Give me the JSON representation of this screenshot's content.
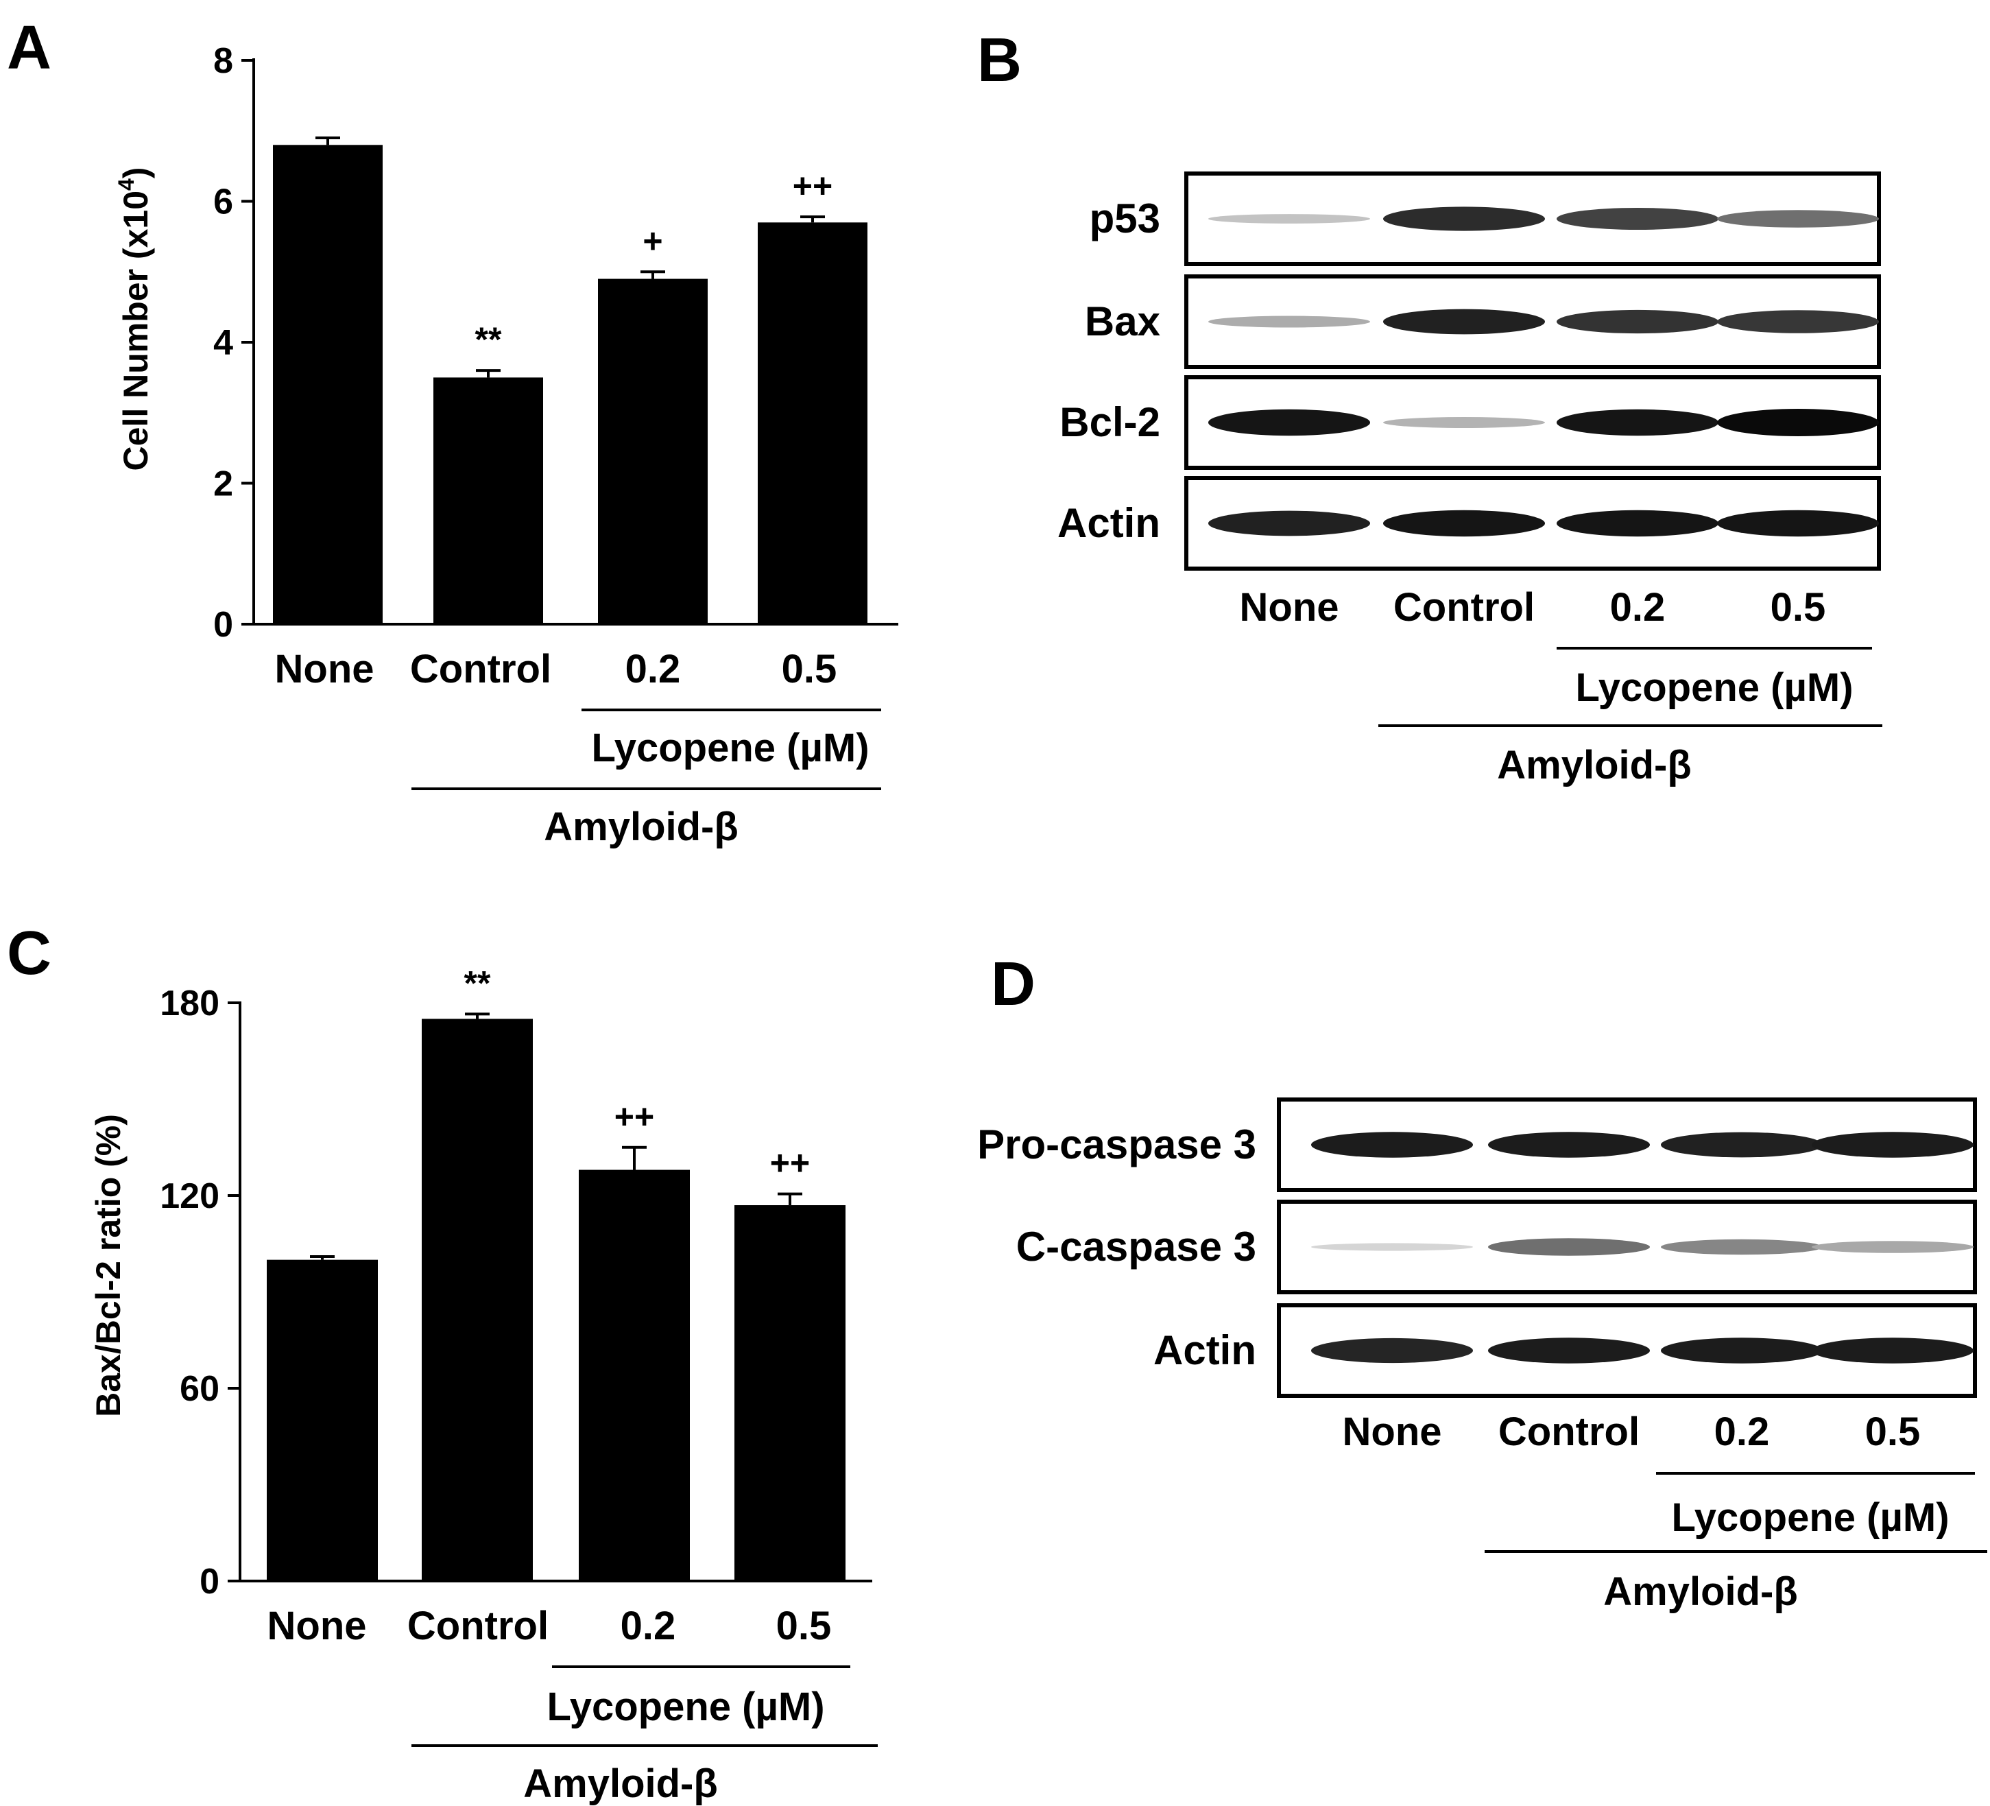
{
  "chart_data": [
    {
      "panel": "A",
      "type": "bar",
      "title": "",
      "xlabel": "",
      "ylabel": "Cell Number (x10",
      "ylabel_superscript": "4",
      "ylabel_suffix": ")",
      "ylim": [
        0,
        8
      ],
      "yticks": [
        "0",
        "2",
        "4",
        "6",
        "8"
      ],
      "categories": [
        "None",
        "Control",
        "0.2",
        "0.5"
      ],
      "values": [
        6.8,
        3.5,
        4.9,
        5.7
      ],
      "errors": [
        0.1,
        0.1,
        0.1,
        0.08
      ],
      "significance": [
        "",
        "**",
        "+",
        "++"
      ],
      "group_inner": "Lycopene (µM)",
      "group_outer": "Amyloid-β",
      "legend": "none"
    },
    {
      "panel": "C",
      "type": "bar",
      "title": "",
      "xlabel": "",
      "ylabel": "Bax/Bcl-2 ratio (%)",
      "ylim": [
        0,
        180
      ],
      "yticks": [
        "0",
        "60",
        "120",
        "180"
      ],
      "categories": [
        "None",
        "Control",
        "0.2",
        "0.5"
      ],
      "values": [
        100,
        175,
        128,
        117
      ],
      "errors": [
        1,
        1.5,
        7,
        3.5
      ],
      "significance": [
        "",
        "**",
        "++",
        "++"
      ],
      "group_inner": "Lycopene (µM)",
      "group_outer": "Amyloid-β",
      "legend": "none"
    }
  ],
  "blots": {
    "B": {
      "letter": "B",
      "rows": [
        {
          "label": "p53",
          "intensity": [
            0.18,
            0.85,
            0.75,
            0.55
          ]
        },
        {
          "label": "Bax",
          "intensity": [
            0.28,
            0.9,
            0.82,
            0.8
          ]
        },
        {
          "label": "Bcl-2",
          "intensity": [
            0.95,
            0.25,
            0.95,
            1.0
          ]
        },
        {
          "label": "Actin",
          "intensity": [
            0.9,
            0.95,
            0.95,
            0.95
          ]
        }
      ],
      "categories": [
        "None",
        "Control",
        "0.2",
        "0.5"
      ],
      "group_inner": "Lycopene (µM)",
      "group_outer": "Amyloid-β"
    },
    "D": {
      "letter": "D",
      "rows": [
        {
          "label": "Pro-caspase 3",
          "intensity": [
            0.92,
            0.92,
            0.9,
            0.92
          ]
        },
        {
          "label": "C-caspase 3",
          "intensity": [
            0.1,
            0.55,
            0.45,
            0.3
          ]
        },
        {
          "label": "Actin",
          "intensity": [
            0.88,
            0.92,
            0.92,
            0.92
          ]
        }
      ],
      "categories": [
        "None",
        "Control",
        "0.2",
        "0.5"
      ],
      "group_inner": "Lycopene (µM)",
      "group_outer": "Amyloid-β"
    }
  }
}
